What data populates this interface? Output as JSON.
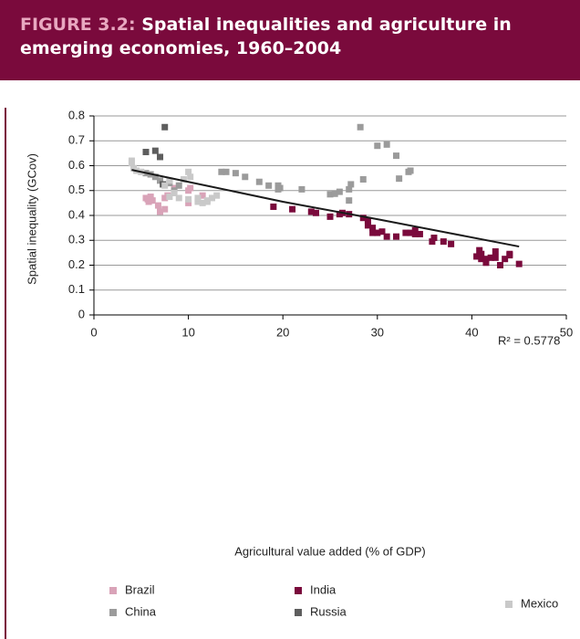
{
  "header": {
    "figure_label": "FIGURE 3.2:",
    "title": "Spatial inequalities and agriculture in emerging economies, 1960–2004"
  },
  "chart_data": {
    "type": "scatter",
    "xlabel": "Agricultural value added (% of GDP)",
    "ylabel": "Spatial inequality (GCov)",
    "xlim": [
      0,
      50
    ],
    "xticks": [
      0,
      10,
      20,
      30,
      40,
      50
    ],
    "ylim": [
      0,
      0.8
    ],
    "yticks": [
      0,
      0.1,
      0.2,
      0.3,
      0.4,
      0.5,
      0.6,
      0.7,
      0.8
    ],
    "grid": true,
    "series": [
      {
        "name": "Brazil",
        "color": "#d9a3b8",
        "x": [
          5.5,
          5.7,
          6,
          5.8,
          6.2,
          6.8,
          7,
          7.5,
          7.5,
          7.8,
          8.5,
          10,
          10,
          10.2,
          11.5,
          11,
          6
        ],
        "values": [
          0.47,
          0.465,
          0.475,
          0.455,
          0.46,
          0.44,
          0.415,
          0.425,
          0.47,
          0.48,
          0.51,
          0.45,
          0.5,
          0.51,
          0.48,
          0.46,
          0.46
        ]
      },
      {
        "name": "China",
        "color": "#9b9b9b",
        "x": [
          5.5,
          6,
          6.5,
          7,
          8,
          9,
          8.5,
          13.5,
          14,
          15,
          16,
          17.5,
          18.5,
          19.5,
          19.7,
          19.5,
          22,
          25,
          25.5,
          26,
          27,
          27.2,
          27,
          28.5,
          28.2,
          30,
          31,
          32,
          32.3,
          33.3,
          33.5
        ],
        "values": [
          0.57,
          0.565,
          0.555,
          0.54,
          0.53,
          0.52,
          0.5,
          0.575,
          0.575,
          0.57,
          0.555,
          0.535,
          0.52,
          0.52,
          0.51,
          0.505,
          0.505,
          0.485,
          0.487,
          0.495,
          0.505,
          0.525,
          0.46,
          0.545,
          0.755,
          0.68,
          0.685,
          0.64,
          0.548,
          0.575,
          0.58
        ]
      },
      {
        "name": "India",
        "color": "#7a0a3c",
        "x": [
          19,
          21,
          23,
          23.5,
          25,
          26,
          26.3,
          27,
          28.5,
          29,
          29,
          29.5,
          29.5,
          30,
          30.5,
          31,
          32,
          33,
          33.5,
          34,
          34,
          34.5,
          36,
          35.8,
          37,
          37.8,
          40.5,
          40.8,
          41,
          41,
          41.5,
          42,
          41.5,
          42.5,
          42.5,
          43,
          43.5,
          44,
          44,
          45
        ],
        "values": [
          0.435,
          0.425,
          0.415,
          0.41,
          0.395,
          0.405,
          0.41,
          0.405,
          0.39,
          0.38,
          0.36,
          0.35,
          0.33,
          0.33,
          0.335,
          0.315,
          0.315,
          0.33,
          0.33,
          0.34,
          0.325,
          0.325,
          0.31,
          0.295,
          0.295,
          0.285,
          0.235,
          0.26,
          0.245,
          0.225,
          0.225,
          0.23,
          0.21,
          0.23,
          0.255,
          0.2,
          0.225,
          0.24,
          0.245,
          0.205
        ]
      },
      {
        "name": "Russia",
        "color": "#5e5e5e",
        "x": [
          5.5,
          6.5,
          7,
          7.5,
          7.3
        ],
        "values": [
          0.655,
          0.66,
          0.635,
          0.755,
          0.525
        ]
      },
      {
        "name": "Mexico",
        "color": "#c9c9c9",
        "x": [
          4,
          4,
          4.2,
          4.5,
          5,
          7.5,
          8,
          8.5,
          8,
          9,
          9.5,
          10,
          10.2,
          10,
          11,
          11.5,
          12,
          12.5,
          13,
          11,
          12
        ],
        "values": [
          0.62,
          0.61,
          0.59,
          0.58,
          0.575,
          0.52,
          0.54,
          0.49,
          0.475,
          0.47,
          0.545,
          0.575,
          0.555,
          0.465,
          0.455,
          0.45,
          0.46,
          0.47,
          0.48,
          0.47,
          0.455
        ]
      }
    ],
    "trendline": {
      "color": "#1a1a1a",
      "x": [
        4,
        10,
        20,
        30,
        45
      ],
      "values": [
        0.583,
        0.535,
        0.455,
        0.385,
        0.275
      ]
    },
    "annotation": "R² = 0.5778"
  }
}
